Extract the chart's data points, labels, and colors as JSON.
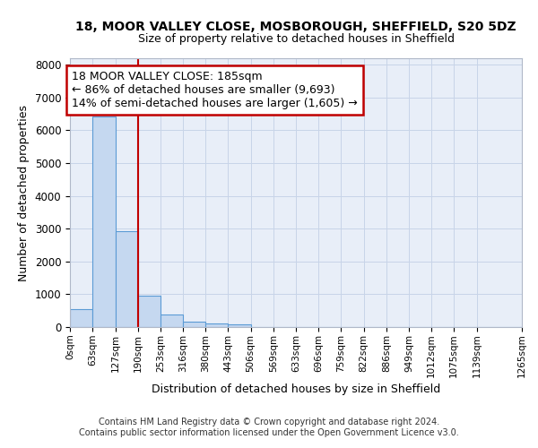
{
  "title1": "18, MOOR VALLEY CLOSE, MOSBOROUGH, SHEFFIELD, S20 5DZ",
  "title2": "Size of property relative to detached houses in Sheffield",
  "xlabel": "Distribution of detached houses by size in Sheffield",
  "ylabel": "Number of detached properties",
  "footer1": "Contains HM Land Registry data © Crown copyright and database right 2024.",
  "footer2": "Contains public sector information licensed under the Open Government Licence v3.0.",
  "bar_values": [
    550,
    6430,
    2920,
    970,
    380,
    175,
    100,
    70,
    0,
    0,
    0,
    0,
    0,
    0,
    0,
    0,
    0,
    0,
    0
  ],
  "bin_edges": [
    0,
    63,
    127,
    190,
    253,
    316,
    380,
    443,
    506,
    569,
    633,
    696,
    759,
    822,
    886,
    949,
    1012,
    1075,
    1139,
    1265
  ],
  "tick_labels": [
    "0sqm",
    "63sqm",
    "127sqm",
    "190sqm",
    "253sqm",
    "316sqm",
    "380sqm",
    "443sqm",
    "506sqm",
    "569sqm",
    "633sqm",
    "696sqm",
    "759sqm",
    "822sqm",
    "886sqm",
    "949sqm",
    "1012sqm",
    "1075sqm",
    "1139sqm",
    "1265sqm"
  ],
  "bar_color": "#c5d8f0",
  "bar_edge_color": "#5b9bd5",
  "vline_x": 190,
  "vline_color": "#c00000",
  "ann_line1": "18 MOOR VALLEY CLOSE: 185sqm",
  "ann_line2": "← 86% of detached houses are smaller (9,693)",
  "ann_line3": "14% of semi-detached houses are larger (1,605) →",
  "annotation_box_color": "#c00000",
  "ylim": [
    0,
    8200
  ],
  "yticks": [
    0,
    1000,
    2000,
    3000,
    4000,
    5000,
    6000,
    7000,
    8000
  ],
  "grid_color": "#c8d4e8",
  "background_color": "#e8eef8"
}
